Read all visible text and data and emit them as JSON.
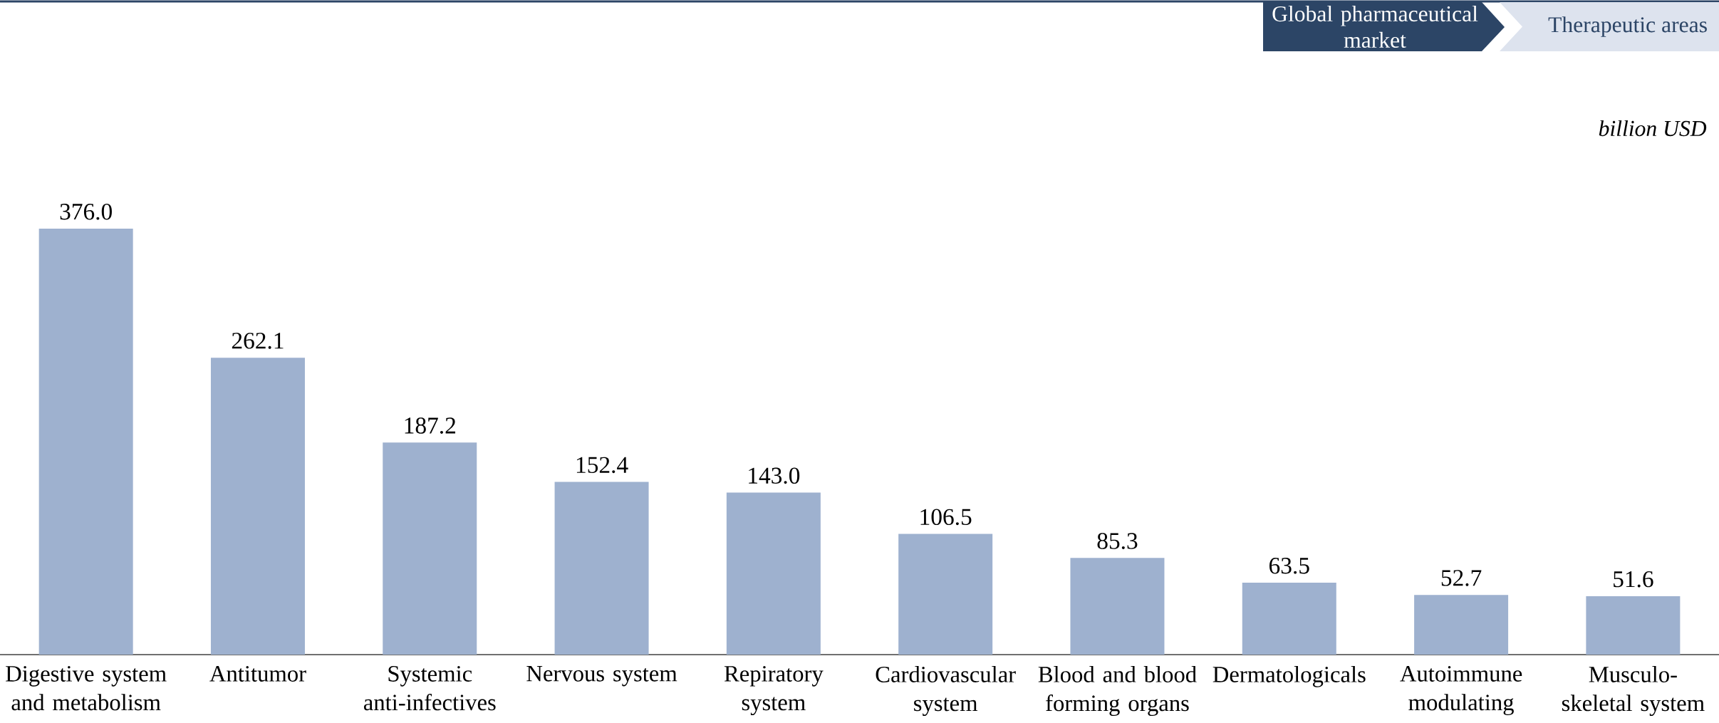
{
  "chart_data": {
    "type": "bar",
    "categories": [
      "Digestive system and metabolism",
      "Antitumor",
      "Systemic anti-infectives",
      "Nervous system",
      "Repiratory system",
      "Cardiovascular system",
      "Blood and blood forming organs",
      "Dermatologicals",
      "Autoimmune modulating",
      "Musculo-skeletal system"
    ],
    "values": [
      376.0,
      262.1,
      187.2,
      152.4,
      143.0,
      106.5,
      85.3,
      63.5,
      52.7,
      51.6
    ],
    "value_labels": [
      "376.0",
      "262.1",
      "187.2",
      "152.4",
      "143.0",
      "106.5",
      "85.3",
      "63.5",
      "52.7",
      "51.6"
    ],
    "color": "#9eb1cf",
    "annotations": [
      "Global pharmaceutical market",
      "Therapeutic areas",
      "billion USD"
    ]
  }
}
